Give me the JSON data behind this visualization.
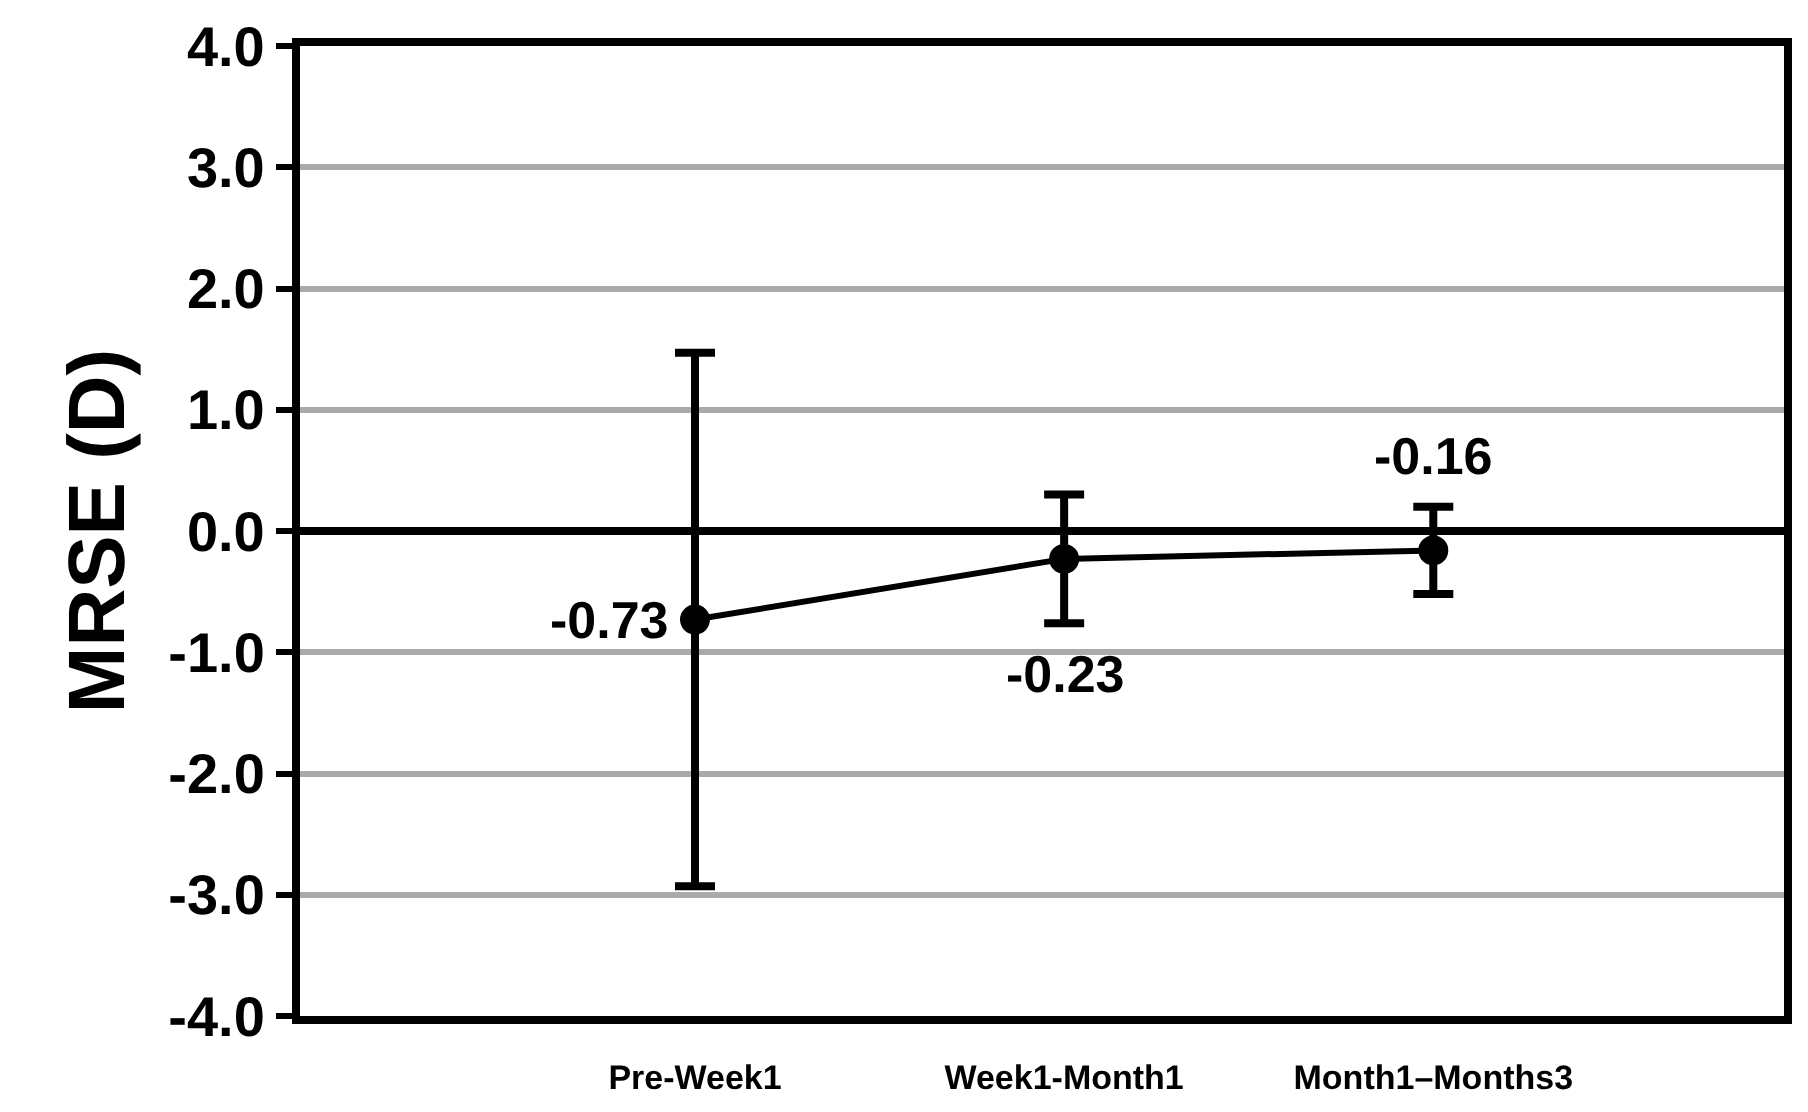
{
  "chart_data": {
    "type": "line",
    "ylabel": "MRSE (D)",
    "categories": [
      "Pre-Week1",
      "Week1-Month1",
      "Month1–Months3"
    ],
    "series": [
      {
        "color": "#000000",
        "values": [
          -0.73,
          -0.23,
          -0.16
        ],
        "errors": [
          2.2,
          0.53,
          0.36
        ]
      }
    ],
    "ylim": [
      -4,
      4
    ],
    "yticks": [
      {
        "value": -4,
        "label": "-4.0"
      },
      {
        "value": -3,
        "label": "-3.0"
      },
      {
        "value": -2,
        "label": "-2.0"
      },
      {
        "value": -1,
        "label": "-1.0"
      },
      {
        "value": 0,
        "label": "0.0"
      },
      {
        "value": 1,
        "label": "1.0"
      },
      {
        "value": 2,
        "label": "2.0"
      },
      {
        "value": 3,
        "label": "3.0"
      },
      {
        "value": 4,
        "label": "4.0"
      }
    ],
    "ref_lines": [
      {
        "axis": "y",
        "value": 0,
        "color": "#000000"
      }
    ],
    "grid": "y",
    "marker": "circle",
    "line_style": "solid",
    "data_labels": true
  }
}
